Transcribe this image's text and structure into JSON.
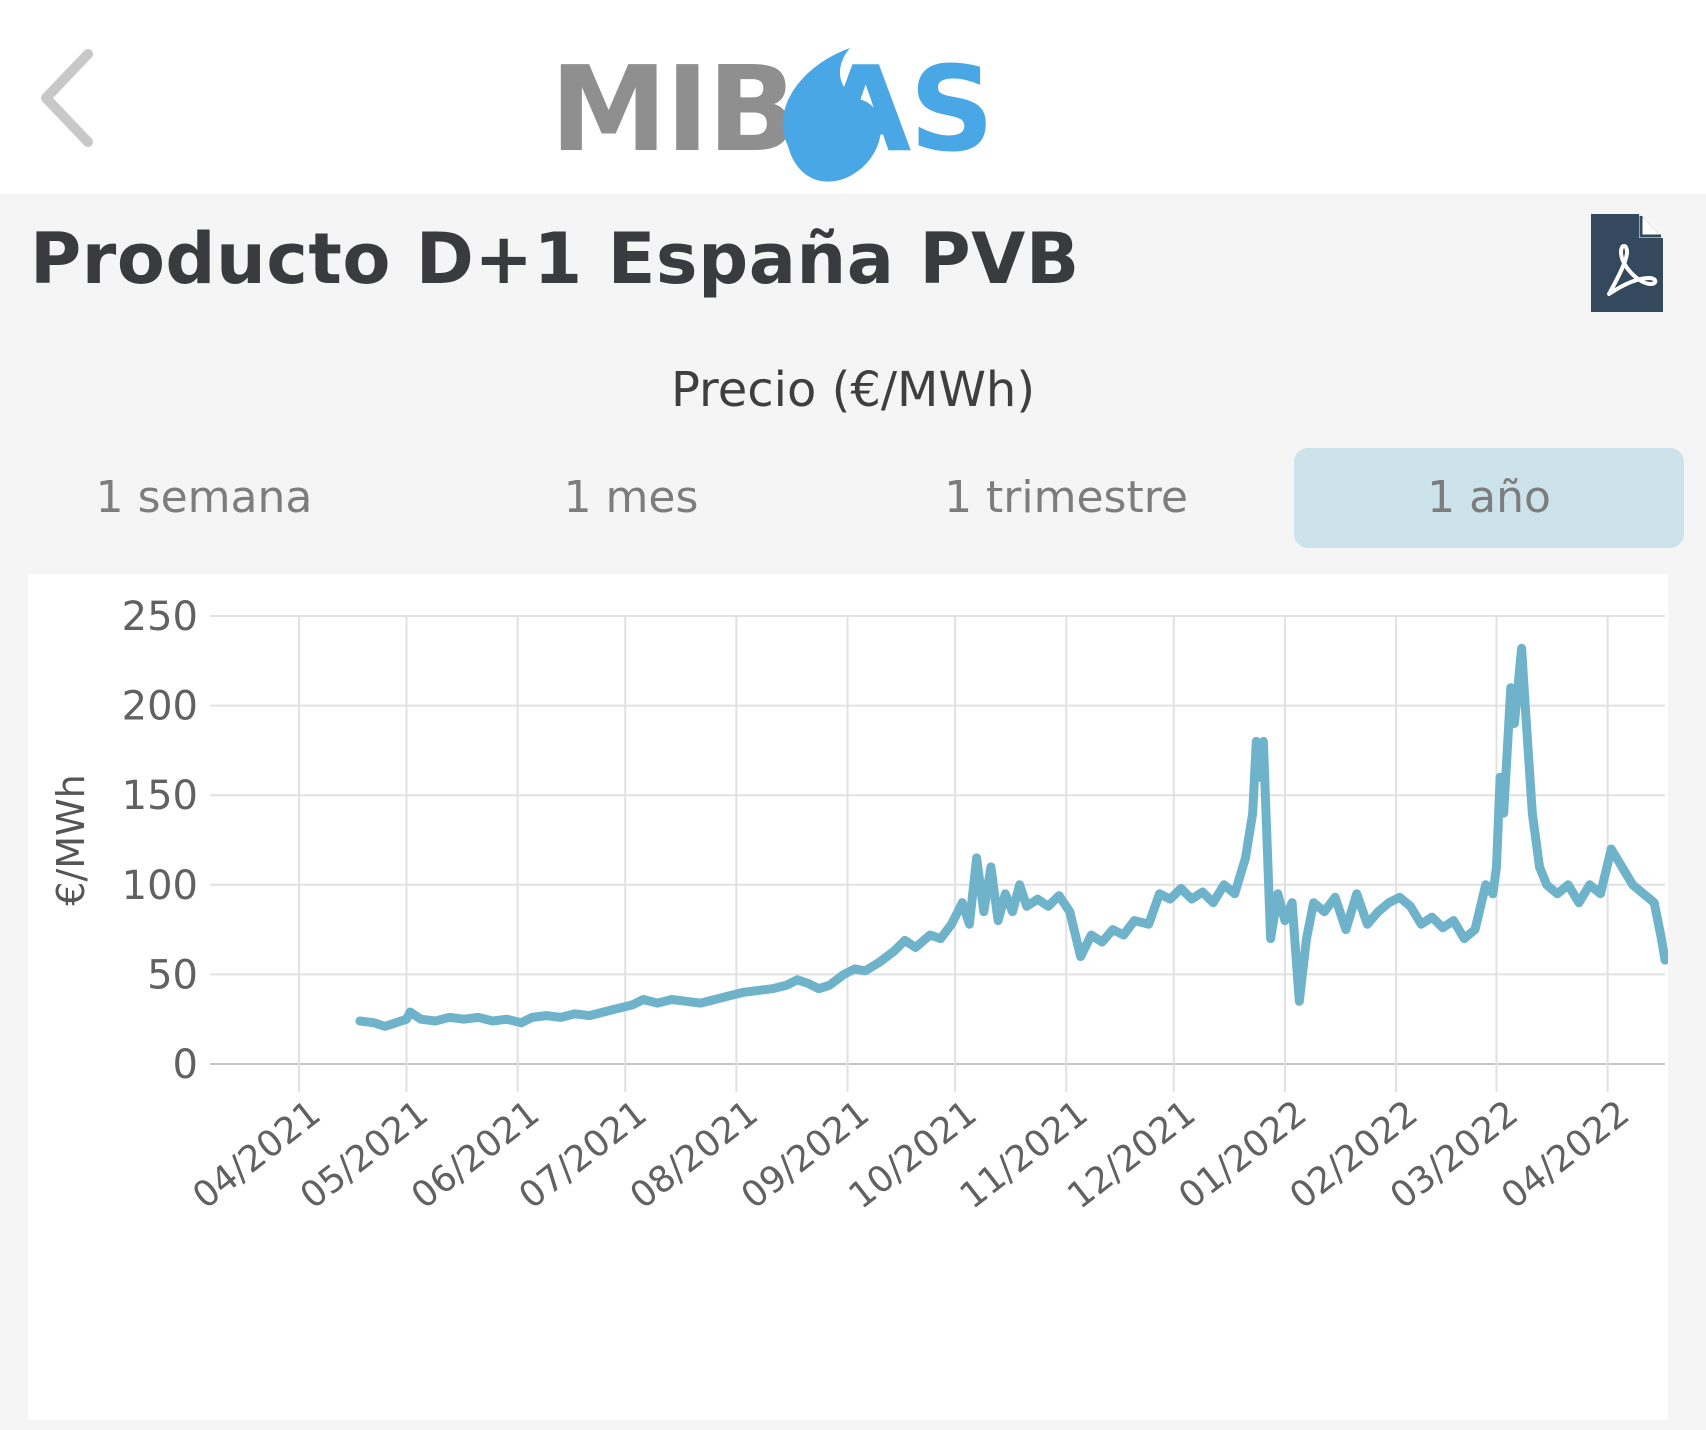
{
  "header": {
    "logo_text_left": "MIB",
    "logo_text_right": "AS",
    "back_icon": "chevron-left-icon"
  },
  "page": {
    "title": "Producto D+1 España PVB",
    "pdf_icon": "pdf-file-icon"
  },
  "chart_title": "Precio (€/MWh)",
  "tabs": [
    {
      "label": "1 semana",
      "active": false
    },
    {
      "label": "1 mes",
      "active": false
    },
    {
      "label": "1 trimestre",
      "active": false
    },
    {
      "label": "1 año",
      "active": true
    }
  ],
  "colors": {
    "line": "#6fb3cb",
    "active_tab": "#cde3ec",
    "logo_gray": "#8f8f8f",
    "logo_blue": "#4aa7e6",
    "pdf_blue": "#34495e"
  },
  "chart_data": {
    "type": "line",
    "ylabel": "€/MWh",
    "xlabel": "",
    "ylim": [
      0,
      250
    ],
    "yticks": [
      0,
      50,
      100,
      150,
      200,
      250
    ],
    "xticks": [
      "04/2021",
      "05/2021",
      "06/2021",
      "07/2021",
      "08/2021",
      "09/2021",
      "10/2021",
      "11/2021",
      "12/2021",
      "01/2022",
      "02/2022",
      "03/2022",
      "04/2022"
    ],
    "grid": true,
    "series": [
      {
        "values": [
          [
            "2021-04-18",
            24
          ],
          [
            "2021-04-22",
            23
          ],
          [
            "2021-04-25",
            21
          ],
          [
            "2021-04-28",
            23
          ],
          [
            "2021-05-01",
            25
          ],
          [
            "2021-05-02",
            29
          ],
          [
            "2021-05-05",
            25
          ],
          [
            "2021-05-09",
            24
          ],
          [
            "2021-05-13",
            26
          ],
          [
            "2021-05-17",
            25
          ],
          [
            "2021-05-21",
            26
          ],
          [
            "2021-05-25",
            24
          ],
          [
            "2021-05-29",
            25
          ],
          [
            "2021-06-02",
            23
          ],
          [
            "2021-06-05",
            26
          ],
          [
            "2021-06-09",
            27
          ],
          [
            "2021-06-13",
            26
          ],
          [
            "2021-06-17",
            28
          ],
          [
            "2021-06-21",
            27
          ],
          [
            "2021-06-25",
            29
          ],
          [
            "2021-06-29",
            31
          ],
          [
            "2021-07-03",
            33
          ],
          [
            "2021-07-06",
            36
          ],
          [
            "2021-07-10",
            34
          ],
          [
            "2021-07-14",
            36
          ],
          [
            "2021-07-18",
            35
          ],
          [
            "2021-07-22",
            34
          ],
          [
            "2021-07-26",
            36
          ],
          [
            "2021-07-30",
            38
          ],
          [
            "2021-08-03",
            40
          ],
          [
            "2021-08-07",
            41
          ],
          [
            "2021-08-11",
            42
          ],
          [
            "2021-08-15",
            44
          ],
          [
            "2021-08-18",
            47
          ],
          [
            "2021-08-21",
            45
          ],
          [
            "2021-08-24",
            42
          ],
          [
            "2021-08-27",
            44
          ],
          [
            "2021-08-31",
            50
          ],
          [
            "2021-09-03",
            53
          ],
          [
            "2021-09-06",
            52
          ],
          [
            "2021-09-10",
            57
          ],
          [
            "2021-09-14",
            63
          ],
          [
            "2021-09-17",
            69
          ],
          [
            "2021-09-20",
            65
          ],
          [
            "2021-09-24",
            72
          ],
          [
            "2021-09-27",
            70
          ],
          [
            "2021-09-30",
            78
          ],
          [
            "2021-10-01",
            82
          ],
          [
            "2021-10-03",
            90
          ],
          [
            "2021-10-05",
            78
          ],
          [
            "2021-10-07",
            115
          ],
          [
            "2021-10-09",
            85
          ],
          [
            "2021-10-11",
            110
          ],
          [
            "2021-10-13",
            80
          ],
          [
            "2021-10-15",
            95
          ],
          [
            "2021-10-17",
            85
          ],
          [
            "2021-10-19",
            100
          ],
          [
            "2021-10-21",
            88
          ],
          [
            "2021-10-24",
            92
          ],
          [
            "2021-10-27",
            88
          ],
          [
            "2021-10-30",
            94
          ],
          [
            "2021-11-02",
            85
          ],
          [
            "2021-11-05",
            60
          ],
          [
            "2021-11-08",
            72
          ],
          [
            "2021-11-11",
            68
          ],
          [
            "2021-11-14",
            75
          ],
          [
            "2021-11-17",
            72
          ],
          [
            "2021-11-20",
            80
          ],
          [
            "2021-11-24",
            78
          ],
          [
            "2021-11-27",
            95
          ],
          [
            "2021-11-30",
            92
          ],
          [
            "2021-12-03",
            98
          ],
          [
            "2021-12-06",
            92
          ],
          [
            "2021-12-09",
            96
          ],
          [
            "2021-12-12",
            90
          ],
          [
            "2021-12-15",
            100
          ],
          [
            "2021-12-18",
            95
          ],
          [
            "2021-12-21",
            115
          ],
          [
            "2021-12-23",
            140
          ],
          [
            "2021-12-24",
            180
          ],
          [
            "2021-12-25",
            160
          ],
          [
            "2021-12-26",
            180
          ],
          [
            "2021-12-28",
            70
          ],
          [
            "2021-12-30",
            95
          ],
          [
            "2022-01-01",
            80
          ],
          [
            "2022-01-03",
            90
          ],
          [
            "2022-01-05",
            35
          ],
          [
            "2022-01-07",
            70
          ],
          [
            "2022-01-09",
            90
          ],
          [
            "2022-01-12",
            85
          ],
          [
            "2022-01-15",
            93
          ],
          [
            "2022-01-18",
            75
          ],
          [
            "2022-01-21",
            95
          ],
          [
            "2022-01-24",
            78
          ],
          [
            "2022-01-27",
            85
          ],
          [
            "2022-01-30",
            90
          ],
          [
            "2022-02-02",
            93
          ],
          [
            "2022-02-05",
            88
          ],
          [
            "2022-02-08",
            78
          ],
          [
            "2022-02-11",
            82
          ],
          [
            "2022-02-14",
            76
          ],
          [
            "2022-02-17",
            80
          ],
          [
            "2022-02-20",
            70
          ],
          [
            "2022-02-23",
            75
          ],
          [
            "2022-02-26",
            100
          ],
          [
            "2022-02-28",
            95
          ],
          [
            "2022-03-01",
            110
          ],
          [
            "2022-03-02",
            160
          ],
          [
            "2022-03-03",
            140
          ],
          [
            "2022-03-05",
            210
          ],
          [
            "2022-03-06",
            190
          ],
          [
            "2022-03-08",
            232
          ],
          [
            "2022-03-09",
            200
          ],
          [
            "2022-03-11",
            140
          ],
          [
            "2022-03-13",
            110
          ],
          [
            "2022-03-15",
            100
          ],
          [
            "2022-03-18",
            95
          ],
          [
            "2022-03-21",
            100
          ],
          [
            "2022-03-24",
            90
          ],
          [
            "2022-03-27",
            100
          ],
          [
            "2022-03-30",
            95
          ],
          [
            "2022-04-02",
            120
          ],
          [
            "2022-04-05",
            110
          ],
          [
            "2022-04-08",
            100
          ],
          [
            "2022-04-11",
            95
          ],
          [
            "2022-04-14",
            90
          ],
          [
            "2022-04-16",
            70
          ],
          [
            "2022-04-17",
            58
          ]
        ]
      }
    ]
  }
}
